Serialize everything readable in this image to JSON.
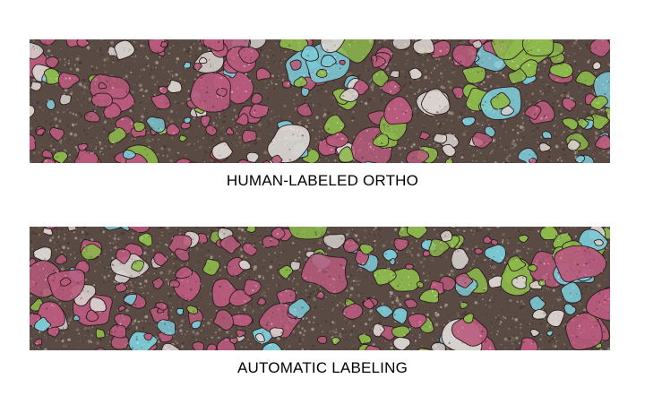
{
  "figure": {
    "panels": [
      {
        "caption": "HUMAN-LABELED ORTHO"
      },
      {
        "caption": "AUTOMATIC LABELING"
      }
    ]
  },
  "palette": {
    "background": "#ffffff",
    "substrate": "#5a4a44",
    "pink_coral": "#b85a7c",
    "cyan_coral": "#7cc9d6",
    "green_algae": "#8cb84c",
    "white_coral": "#d8d2cf",
    "outline": "#2a1c1c"
  }
}
